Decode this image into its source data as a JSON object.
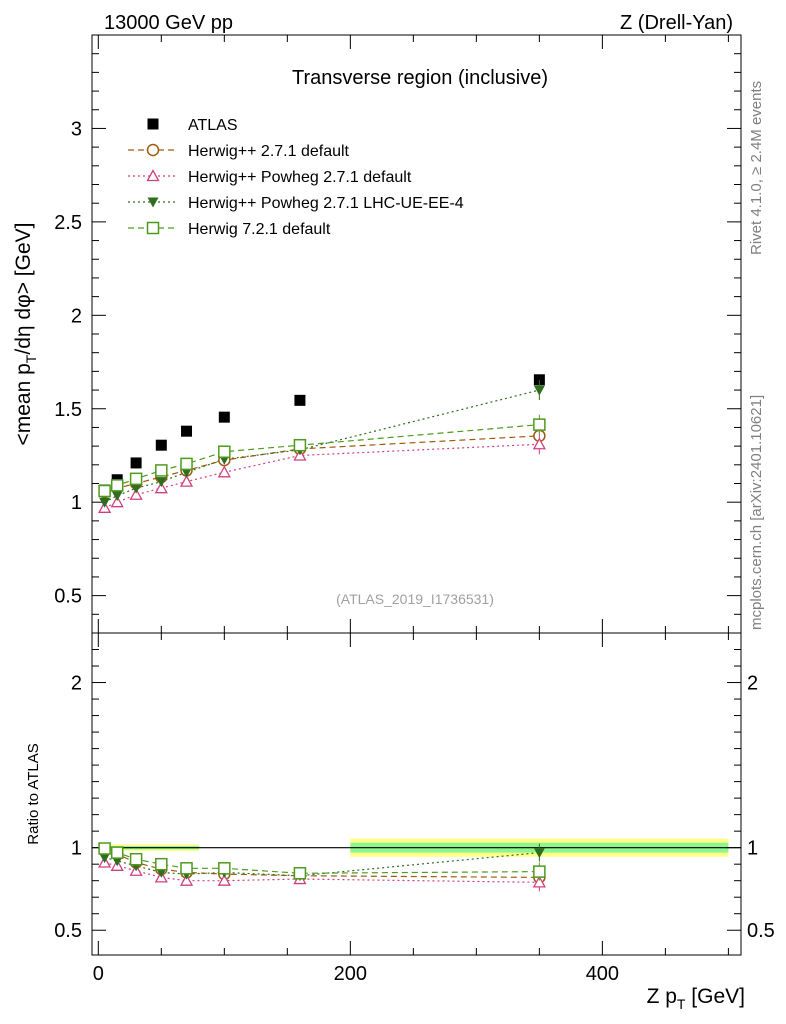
{
  "header": {
    "left": "13000 GeV pp",
    "right": "Z (Drell-Yan)"
  },
  "side_text": {
    "rivet": "Rivet 4.1.0, ≥ 2.4M events",
    "mcplots": "mcplots.cern.ch [arXiv:2401.10621]"
  },
  "colors": {
    "atlas": "#000000",
    "herwigpp": "#a05a10",
    "powheg": "#d04080",
    "powheg_ue": "#2e6e1e",
    "herwig7": "#4e9a1e",
    "band_inner": "#8ff58f",
    "band_outer": "#ffff88"
  },
  "chart_data": [
    {
      "type": "scatter",
      "title": "Transverse region (inclusive)",
      "ylabel": "<mean p_T/dη dφ> [GeV]",
      "ylabel_parts": {
        "pre": "<mean p",
        "sub": "T",
        "post": "/dη dφ> [GeV]"
      },
      "xlim": [
        -5,
        510
      ],
      "ylim": [
        0.3,
        3.5
      ],
      "yticks": [
        0.5,
        1,
        1.5,
        2,
        2.5,
        3
      ],
      "ytick_labels": [
        "0.5",
        "1",
        "1.5",
        "2",
        "2.5",
        "3"
      ],
      "watermark": "(ATLAS_2019_I1736531)",
      "x": [
        5,
        15,
        30,
        50,
        70,
        100,
        160,
        350
      ],
      "series": [
        {
          "name": "ATLAS",
          "key": "atlas",
          "marker": "square-filled",
          "line": "none",
          "values": [
            1.065,
            1.12,
            1.21,
            1.305,
            1.38,
            1.455,
            1.545,
            1.655
          ]
        },
        {
          "name": "Herwig++ 2.7.1 default",
          "key": "herwigpp",
          "marker": "circle-open",
          "line": "dashed",
          "values": [
            1.055,
            1.075,
            1.1,
            1.135,
            1.17,
            1.225,
            1.285,
            1.355
          ]
        },
        {
          "name": "Herwig++ Powheg 2.7.1 default",
          "key": "powheg",
          "marker": "triangle-up-open",
          "line": "dotted",
          "values": [
            0.97,
            1.0,
            1.04,
            1.075,
            1.11,
            1.16,
            1.25,
            1.31
          ]
        },
        {
          "name": "Herwig++ Powheg 2.7.1 LHC-UE-EE-4",
          "key": "powheg_ue",
          "marker": "triangle-down-filled",
          "line": "dotted",
          "values": [
            1.0,
            1.035,
            1.075,
            1.11,
            1.16,
            1.23,
            1.28,
            1.6
          ]
        },
        {
          "name": "Herwig 7.2.1 default",
          "key": "herwig7",
          "marker": "square-open",
          "line": "dashed",
          "values": [
            1.06,
            1.09,
            1.125,
            1.17,
            1.205,
            1.27,
            1.305,
            1.415
          ]
        }
      ]
    },
    {
      "type": "scatter",
      "ylabel": "Ratio to ATLAS",
      "xlabel_parts": {
        "pre": "Z p",
        "sub": "T",
        "post": " [GeV]"
      },
      "xlim": [
        -5,
        510
      ],
      "ylim": [
        0.35,
        2.3
      ],
      "yticks": [
        0.5,
        1,
        2
      ],
      "ytick_labels": [
        "0.5",
        "1",
        "2"
      ],
      "xticks": [
        0,
        200,
        400
      ],
      "xtick_labels": [
        "0",
        "200",
        "400"
      ],
      "x": [
        5,
        15,
        30,
        50,
        70,
        100,
        160,
        350
      ],
      "series": [
        {
          "name": "Herwig++ 2.7.1 default",
          "key": "herwigpp",
          "values": [
            0.99,
            0.96,
            0.91,
            0.87,
            0.85,
            0.84,
            0.83,
            0.82
          ]
        },
        {
          "name": "Herwig++ Powheg 2.7.1 default",
          "key": "powheg",
          "values": [
            0.91,
            0.89,
            0.86,
            0.82,
            0.8,
            0.8,
            0.81,
            0.79
          ]
        },
        {
          "name": "Herwig++ Powheg 2.7.1 LHC-UE-EE-4",
          "key": "powheg_ue",
          "values": [
            0.94,
            0.92,
            0.89,
            0.85,
            0.84,
            0.85,
            0.83,
            0.97
          ]
        },
        {
          "name": "Herwig 7.2.1 default",
          "key": "herwig7",
          "values": [
            0.995,
            0.97,
            0.93,
            0.9,
            0.875,
            0.875,
            0.845,
            0.855
          ]
        }
      ],
      "bands": [
        {
          "x0": 0,
          "x1": 80,
          "inner": 0.01,
          "outer": 0.02
        },
        {
          "x0": 200,
          "x1": 500,
          "inner": 0.03,
          "outer": 0.055
        }
      ]
    }
  ]
}
